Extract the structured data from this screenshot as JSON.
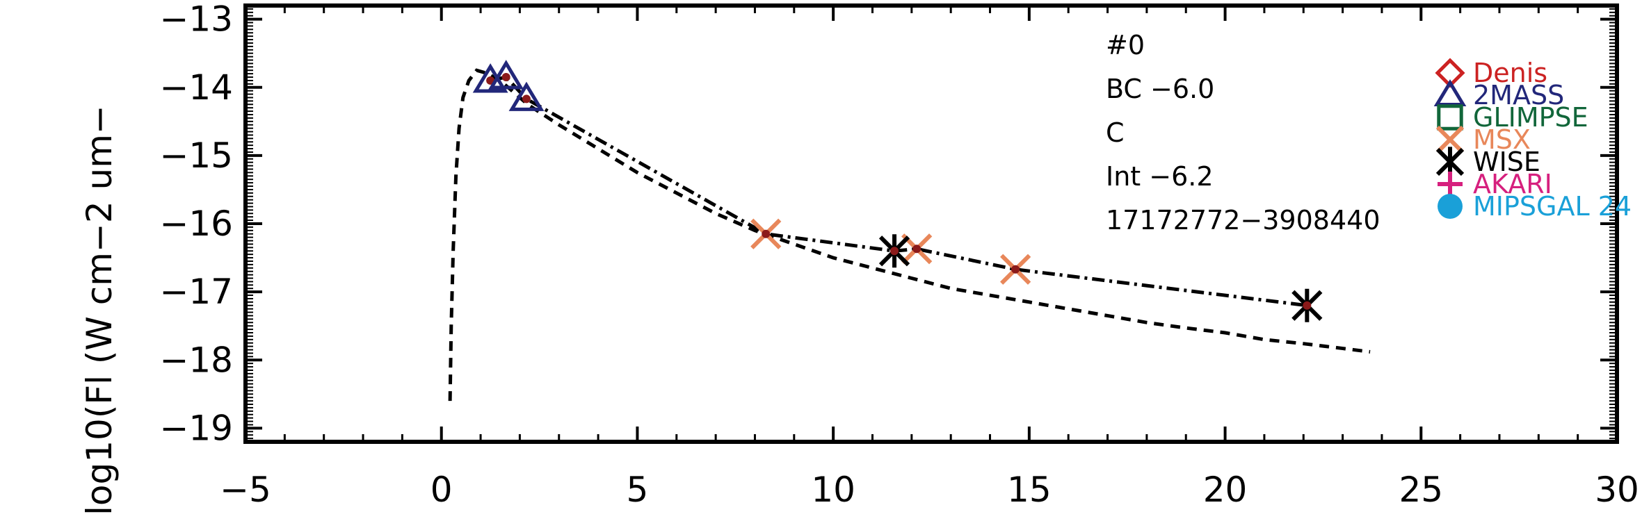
{
  "chart_data": {
    "type": "scatter",
    "title": "",
    "xlabel": "",
    "ylabel": "log10(Fl (W cm−2 um−",
    "xlim": [
      -5,
      30
    ],
    "ylim": [
      -19.2,
      -12.8
    ],
    "x_ticks": [
      -5,
      0,
      5,
      10,
      15,
      20,
      25,
      30
    ],
    "x_tick_labels": [
      "−5",
      "0",
      "5",
      "10",
      "15",
      "20",
      "25",
      "30"
    ],
    "y_ticks": [
      -19,
      -18,
      -17,
      -16,
      -15,
      -14,
      -13
    ],
    "y_tick_labels": [
      "−19",
      "−18",
      "−17",
      "−16",
      "−15",
      "−14",
      "−13"
    ],
    "annotations": [
      "#0",
      "BC −6.0",
      "C",
      "Int −6.2",
      "17172772−3908440"
    ],
    "legend": {
      "placement": "right",
      "entries": [
        {
          "label": "Denis",
          "marker": "diamond",
          "color": "#cc2222"
        },
        {
          "label": "2MASS",
          "marker": "triangle",
          "color": "#22277a"
        },
        {
          "label": "GLIMPSE",
          "marker": "square",
          "color": "#11663a"
        },
        {
          "label": "MSX",
          "marker": "x",
          "color": "#e8875a"
        },
        {
          "label": "WISE",
          "marker": "asterisk",
          "color": "#000000"
        },
        {
          "label": "AKARI",
          "marker": "plus",
          "color": "#d6207e"
        },
        {
          "label": "MIPSGAL 24",
          "marker": "circle",
          "color": "#1aa0d8"
        }
      ]
    },
    "series": [
      {
        "label_ref": "2MASS",
        "marker": "triangle",
        "color": "#22277a",
        "points": [
          {
            "x": 1.25,
            "y": -13.9
          },
          {
            "x": 1.65,
            "y": -13.85
          },
          {
            "x": 2.17,
            "y": -14.17
          }
        ]
      },
      {
        "label_ref": "MSX",
        "marker": "x",
        "color": "#e8875a",
        "points": [
          {
            "x": 8.28,
            "y": -16.15
          },
          {
            "x": 12.13,
            "y": -16.37
          },
          {
            "x": 14.65,
            "y": -16.67
          }
        ]
      },
      {
        "label_ref": "WISE",
        "marker": "asterisk",
        "color": "#000000",
        "points": [
          {
            "x": 11.56,
            "y": -16.4
          },
          {
            "x": 22.09,
            "y": -17.2
          }
        ]
      }
    ],
    "lines": [
      {
        "style": "dashed",
        "points": [
          {
            "x": 0.22,
            "y": -18.6
          },
          {
            "x": 0.25,
            "y": -17.5
          },
          {
            "x": 0.3,
            "y": -16.4
          },
          {
            "x": 0.37,
            "y": -15.3
          },
          {
            "x": 0.45,
            "y": -14.6
          },
          {
            "x": 0.55,
            "y": -14.15
          },
          {
            "x": 0.7,
            "y": -13.9
          },
          {
            "x": 0.9,
            "y": -13.75
          },
          {
            "x": 1.2,
            "y": -13.8
          },
          {
            "x": 1.6,
            "y": -13.95
          },
          {
            "x": 2.2,
            "y": -14.25
          },
          {
            "x": 3,
            "y": -14.55
          },
          {
            "x": 4,
            "y": -14.9
          },
          {
            "x": 5,
            "y": -15.25
          },
          {
            "x": 6,
            "y": -15.55
          },
          {
            "x": 7,
            "y": -15.85
          },
          {
            "x": 8,
            "y": -16.1
          },
          {
            "x": 9,
            "y": -16.3
          },
          {
            "x": 10,
            "y": -16.5
          },
          {
            "x": 11,
            "y": -16.65
          },
          {
            "x": 12,
            "y": -16.8
          },
          {
            "x": 13,
            "y": -16.95
          },
          {
            "x": 14,
            "y": -17.05
          },
          {
            "x": 15,
            "y": -17.15
          },
          {
            "x": 16,
            "y": -17.25
          },
          {
            "x": 17,
            "y": -17.35
          },
          {
            "x": 18,
            "y": -17.45
          },
          {
            "x": 19,
            "y": -17.53
          },
          {
            "x": 20,
            "y": -17.6
          },
          {
            "x": 21,
            "y": -17.7
          },
          {
            "x": 22,
            "y": -17.76
          },
          {
            "x": 23,
            "y": -17.83
          },
          {
            "x": 23.7,
            "y": -17.88
          }
        ]
      },
      {
        "style": "dashdot",
        "points": [
          {
            "x": 1.25,
            "y": -13.9
          },
          {
            "x": 1.65,
            "y": -13.85
          },
          {
            "x": 2.17,
            "y": -14.17
          },
          {
            "x": 8.28,
            "y": -16.15
          },
          {
            "x": 11.56,
            "y": -16.4
          },
          {
            "x": 12.13,
            "y": -16.37
          },
          {
            "x": 14.65,
            "y": -16.67
          },
          {
            "x": 22.09,
            "y": -17.2
          }
        ]
      }
    ]
  }
}
